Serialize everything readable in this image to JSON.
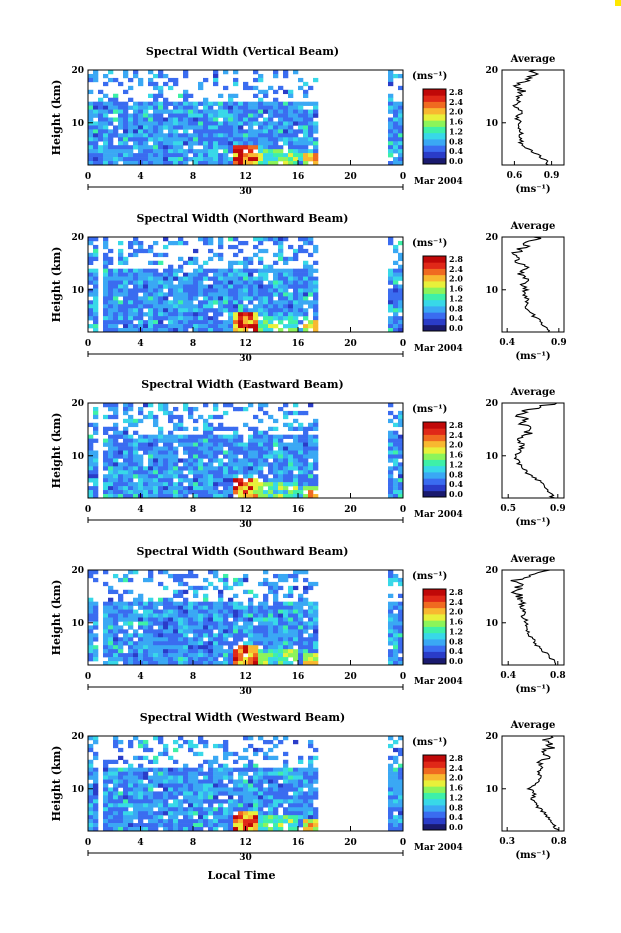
{
  "figure": {
    "xlabel": "Local Time",
    "date_label": "Mar 2004",
    "day_label": "30",
    "time_ticks": [
      "0",
      "4",
      "8",
      "12",
      "16",
      "20",
      "0"
    ],
    "unit_label": "(ms⁻¹)",
    "avg_title": "Average",
    "avg_xlabel": "(ms⁻¹)",
    "ylabel": "Height (km)"
  },
  "colors": {
    "scale": [
      "#1a1a6e",
      "#2a3cc8",
      "#3a6cf0",
      "#3aa8f4",
      "#38d8e8",
      "#3ef0a8",
      "#8cf45a",
      "#e8f03a",
      "#f8b830",
      "#f06a20",
      "#e02818",
      "#c00808"
    ]
  },
  "chart_data": [
    {
      "type": "heatmap",
      "title": "Spectral Width (Vertical Beam)",
      "xlabel": "Local Time",
      "ylabel": "Height (km)",
      "xlim": [
        0,
        24
      ],
      "ylim": [
        2,
        20
      ],
      "yticks": [
        "20",
        "10"
      ],
      "colorbar_ticks": [
        "2.8",
        "2.4",
        "2.0",
        "1.6",
        "1.2",
        "0.8",
        "0.4",
        "0.0"
      ],
      "colorbar_range": [
        0,
        2.8
      ],
      "profile": {
        "title": "Average",
        "xticks": [
          "0.6",
          "0.9"
        ],
        "xlim": [
          0.5,
          1.0
        ],
        "heights": [
          2,
          3,
          4,
          5,
          6,
          7,
          8,
          9,
          10,
          11,
          12,
          13,
          14,
          15,
          16,
          17,
          18,
          19,
          20
        ],
        "values": [
          0.88,
          0.85,
          0.78,
          0.72,
          0.66,
          0.64,
          0.66,
          0.63,
          0.65,
          0.62,
          0.66,
          0.6,
          0.64,
          0.61,
          0.65,
          0.6,
          0.68,
          0.74,
          0.78
        ]
      }
    },
    {
      "type": "heatmap",
      "title": "Spectral Width (Northward Beam)",
      "xlabel": "Local Time",
      "ylabel": "Height (km)",
      "xlim": [
        0,
        24
      ],
      "ylim": [
        2,
        20
      ],
      "yticks": [
        "20",
        "10"
      ],
      "colorbar_ticks": [
        "2.8",
        "2.4",
        "2.0",
        "1.6",
        "1.2",
        "0.8",
        "0.4",
        "0.0"
      ],
      "colorbar_range": [
        0,
        2.8
      ],
      "profile": {
        "title": "Average",
        "xticks": [
          "0.4",
          "0.9"
        ],
        "xlim": [
          0.35,
          0.95
        ],
        "heights": [
          2,
          3,
          4,
          5,
          6,
          7,
          8,
          9,
          10,
          11,
          12,
          13,
          14,
          15,
          16,
          17,
          18,
          19,
          20
        ],
        "values": [
          0.82,
          0.78,
          0.72,
          0.66,
          0.62,
          0.58,
          0.6,
          0.56,
          0.58,
          0.55,
          0.6,
          0.52,
          0.58,
          0.5,
          0.56,
          0.48,
          0.55,
          0.62,
          0.7
        ]
      }
    },
    {
      "type": "heatmap",
      "title": "Spectral Width (Eastward Beam)",
      "xlabel": "Local Time",
      "ylabel": "Height (km)",
      "xlim": [
        0,
        24
      ],
      "ylim": [
        2,
        20
      ],
      "yticks": [
        "20",
        "10"
      ],
      "colorbar_ticks": [
        "2.8",
        "2.4",
        "2.0",
        "1.6",
        "1.2",
        "0.8",
        "0.4",
        "0.0"
      ],
      "colorbar_range": [
        0,
        2.8
      ],
      "profile": {
        "title": "Average",
        "xticks": [
          "0.5",
          "0.9"
        ],
        "xlim": [
          0.45,
          0.95
        ],
        "heights": [
          2,
          3,
          4,
          5,
          6,
          7,
          8,
          9,
          10,
          11,
          12,
          13,
          14,
          15,
          16,
          17,
          18,
          19,
          20
        ],
        "values": [
          0.86,
          0.84,
          0.8,
          0.76,
          0.7,
          0.64,
          0.6,
          0.58,
          0.56,
          0.6,
          0.62,
          0.58,
          0.64,
          0.7,
          0.6,
          0.62,
          0.58,
          0.72,
          0.88
        ]
      }
    },
    {
      "type": "heatmap",
      "title": "Spectral Width (Southward Beam)",
      "xlabel": "Local Time",
      "ylabel": "Height (km)",
      "xlim": [
        0,
        24
      ],
      "ylim": [
        2,
        20
      ],
      "yticks": [
        "20",
        "10"
      ],
      "colorbar_ticks": [
        "2.8",
        "2.4",
        "2.0",
        "1.6",
        "1.2",
        "0.8",
        "0.4",
        "0.0"
      ],
      "colorbar_range": [
        0,
        2.8
      ],
      "profile": {
        "title": "Average",
        "xticks": [
          "0.4",
          "0.8"
        ],
        "xlim": [
          0.35,
          0.85
        ],
        "heights": [
          2,
          3,
          4,
          5,
          6,
          7,
          8,
          9,
          10,
          11,
          12,
          13,
          14,
          15,
          16,
          17,
          18,
          19,
          20
        ],
        "values": [
          0.78,
          0.76,
          0.72,
          0.66,
          0.62,
          0.6,
          0.56,
          0.54,
          0.56,
          0.52,
          0.54,
          0.5,
          0.52,
          0.48,
          0.46,
          0.5,
          0.44,
          0.6,
          0.72
        ]
      }
    },
    {
      "type": "heatmap",
      "title": "Spectral Width (Westward Beam)",
      "xlabel": "Local Time",
      "ylabel": "Height (km)",
      "xlim": [
        0,
        24
      ],
      "ylim": [
        2,
        20
      ],
      "yticks": [
        "20",
        "10"
      ],
      "colorbar_ticks": [
        "2.8",
        "2.4",
        "2.0",
        "1.6",
        "1.2",
        "0.8",
        "0.4",
        "0.0"
      ],
      "colorbar_range": [
        0,
        2.8
      ],
      "profile": {
        "title": "Average",
        "xticks": [
          "0.3",
          "0.8"
        ],
        "xlim": [
          0.25,
          0.85
        ],
        "heights": [
          2,
          3,
          4,
          5,
          6,
          7,
          8,
          9,
          10,
          11,
          12,
          13,
          14,
          15,
          16,
          17,
          18,
          19,
          20
        ],
        "values": [
          0.78,
          0.76,
          0.72,
          0.68,
          0.62,
          0.58,
          0.54,
          0.56,
          0.52,
          0.58,
          0.62,
          0.6,
          0.66,
          0.56,
          0.7,
          0.62,
          0.74,
          0.66,
          0.76
        ]
      }
    }
  ]
}
